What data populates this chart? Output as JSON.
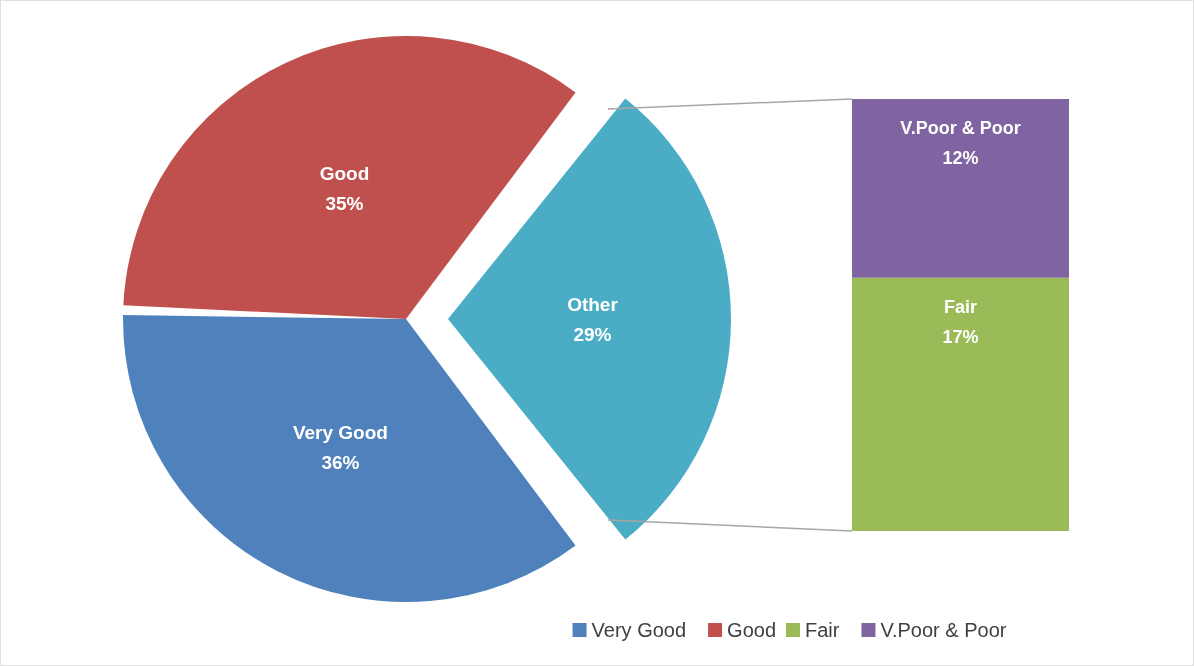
{
  "chart_data": [
    {
      "type": "pie",
      "categories": [
        "Very Good",
        "Good",
        "Other"
      ],
      "values": [
        36,
        35,
        29
      ],
      "colors": [
        "#4f81bd",
        "#c0504d",
        "#4bacc6"
      ],
      "value_labels": [
        "36%",
        "35%",
        "29%"
      ],
      "legend": "bottom"
    },
    {
      "type": "bar",
      "stacked": true,
      "categories": [
        null
      ],
      "tick_labels": false,
      "legend": "bottom",
      "series": [
        {
          "name": "Fair",
          "color": "#9bbb59",
          "values": [
            17
          ],
          "value_labels": [
            "17%"
          ]
        },
        {
          "name": "V.Poor & Poor",
          "color": "#8064a2",
          "values": [
            12
          ],
          "value_labels": [
            "12%"
          ]
        }
      ]
    }
  ]
}
